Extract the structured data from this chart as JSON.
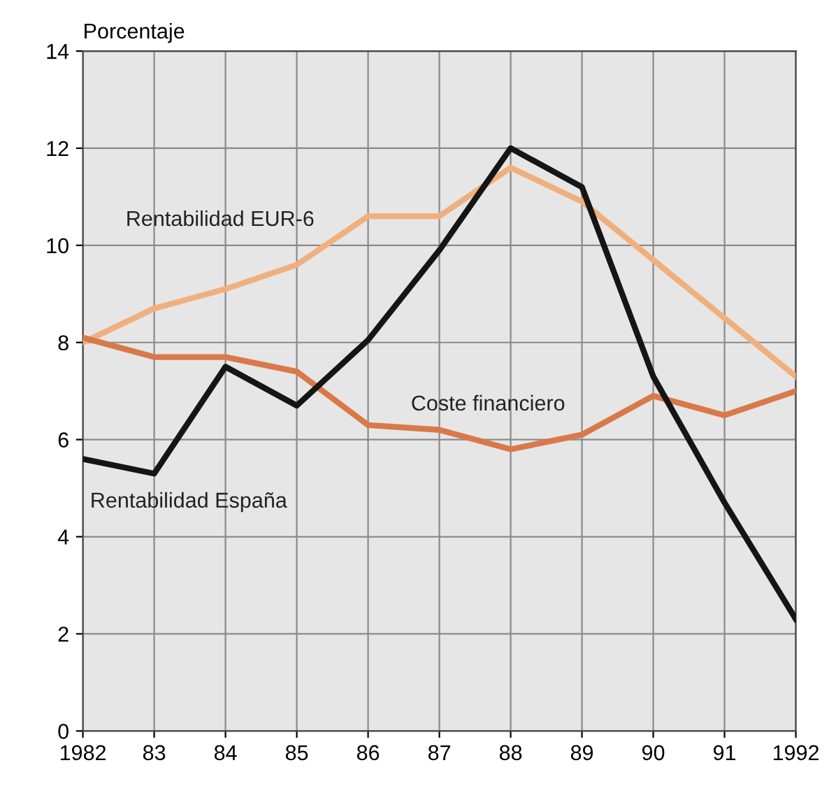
{
  "chart_data": {
    "type": "line",
    "ylabel": "Porcentaje",
    "categories": [
      "1982",
      "83",
      "84",
      "85",
      "86",
      "87",
      "88",
      "89",
      "90",
      "91",
      "1992"
    ],
    "series": [
      {
        "name": "Rentabilidad EUR-6",
        "color": "#f0b07e",
        "values": [
          8.0,
          8.7,
          9.1,
          9.6,
          10.6,
          10.6,
          11.6,
          10.9,
          9.7,
          8.5,
          7.3
        ]
      },
      {
        "name": "Coste financiero",
        "color": "#d9794a",
        "values": [
          8.1,
          7.7,
          7.7,
          7.4,
          6.3,
          6.2,
          5.8,
          6.1,
          6.9,
          6.5,
          7.0
        ]
      },
      {
        "name": "Rentabilidad España",
        "color": "#151515",
        "values": [
          5.6,
          5.3,
          7.5,
          6.7,
          8.05,
          9.9,
          12.0,
          11.2,
          7.3,
          4.7,
          2.3
        ]
      }
    ],
    "ylim": [
      0,
      14
    ],
    "yticks": [
      0,
      2,
      4,
      6,
      8,
      10,
      12,
      14
    ],
    "grid": true,
    "legend": false,
    "marker": "none",
    "line_style": "solid"
  }
}
